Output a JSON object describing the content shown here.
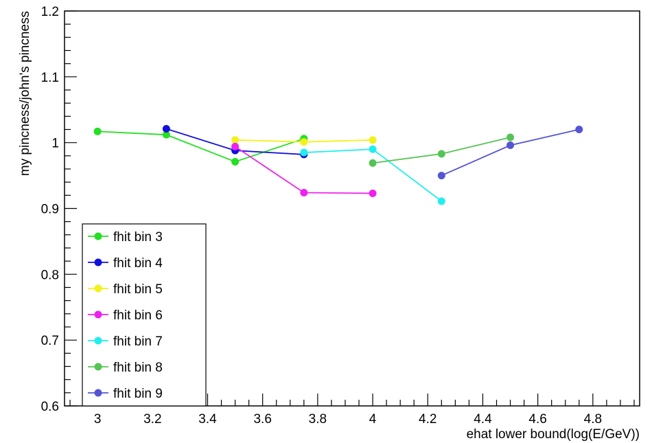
{
  "chart_data": {
    "type": "line",
    "title": "",
    "xlabel": "ehat lower bound(log(E/GeV))",
    "ylabel": "my pincness/john's pincness",
    "xlim": [
      2.88,
      4.97
    ],
    "ylim": [
      0.6,
      1.2
    ],
    "xticks": [
      "3",
      "3.2",
      "3.4",
      "3.6",
      "3.8",
      "4",
      "4.2",
      "4.4",
      "4.6",
      "4.8"
    ],
    "yticks": [
      "0.6",
      "0.7",
      "0.8",
      "0.9",
      "1",
      "1.1",
      "1.2"
    ],
    "grid": false,
    "legend_position": "bottom-left",
    "series": [
      {
        "name": "fhit bin 3",
        "color": "#22e022",
        "points": [
          [
            3.0,
            1.017
          ],
          [
            3.25,
            1.012
          ],
          [
            3.5,
            0.971
          ],
          [
            3.75,
            1.006
          ]
        ]
      },
      {
        "name": "fhit bin 4",
        "color": "#1010dd",
        "points": [
          [
            3.25,
            1.021
          ],
          [
            3.5,
            0.988
          ],
          [
            3.75,
            0.982
          ]
        ]
      },
      {
        "name": "fhit bin 5",
        "color": "#f2f21a",
        "points": [
          [
            3.5,
            1.004
          ],
          [
            3.75,
            1.001
          ],
          [
            4.0,
            1.004
          ]
        ]
      },
      {
        "name": "fhit bin 6",
        "color": "#ee22ee",
        "points": [
          [
            3.5,
            0.994
          ],
          [
            3.75,
            0.924
          ],
          [
            4.0,
            0.923
          ]
        ]
      },
      {
        "name": "fhit bin 7",
        "color": "#22eeee",
        "points": [
          [
            3.75,
            0.985
          ],
          [
            4.0,
            0.99
          ],
          [
            4.25,
            0.911
          ]
        ]
      },
      {
        "name": "fhit bin 8",
        "color": "#55c455",
        "points": [
          [
            4.0,
            0.969
          ],
          [
            4.25,
            0.983
          ],
          [
            4.5,
            1.008
          ]
        ]
      },
      {
        "name": "fhit bin 9",
        "color": "#5555d4",
        "points": [
          [
            4.25,
            0.95
          ],
          [
            4.5,
            0.996
          ],
          [
            4.75,
            1.02
          ]
        ]
      }
    ]
  }
}
